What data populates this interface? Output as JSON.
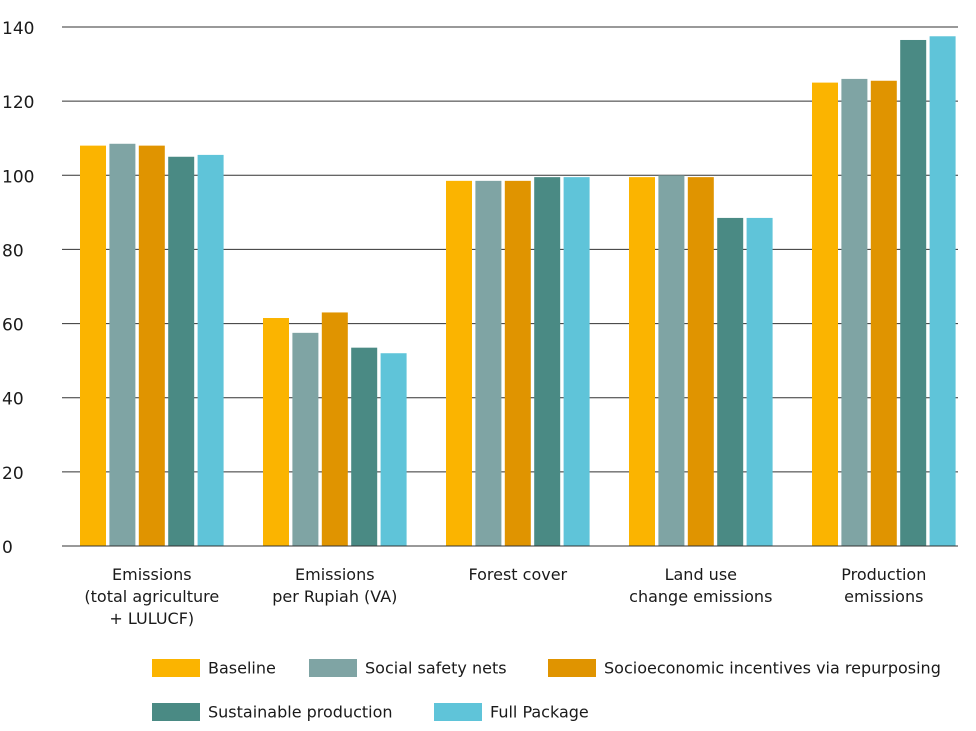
{
  "chart_data": {
    "type": "bar",
    "title": "",
    "xlabel": "",
    "ylabel": "",
    "ylim": [
      0,
      140
    ],
    "yticks": [
      0,
      20,
      40,
      60,
      80,
      100,
      120,
      140
    ],
    "grid": "horizontal",
    "legend_position": "bottom",
    "categories": [
      [
        "Emissions",
        "(total agriculture",
        "+ LULUCF)"
      ],
      [
        "Emissions",
        "per Rupiah (VA)"
      ],
      [
        "Forest cover"
      ],
      [
        "Land use",
        "change emissions"
      ],
      [
        "Production",
        "emissions"
      ]
    ],
    "series": [
      {
        "name": "Baseline",
        "color": "#FBB400",
        "values": [
          108,
          61.5,
          98.5,
          99.5,
          125
        ]
      },
      {
        "name": "Social safety nets",
        "color": "#7FA4A4",
        "values": [
          108.5,
          57.5,
          98.5,
          100,
          126
        ]
      },
      {
        "name": "Socioeconomic incentives via repurposing",
        "color": "#E09400",
        "values": [
          108,
          63,
          98.5,
          99.5,
          125.5
        ]
      },
      {
        "name": "Sustainable production",
        "color": "#4A8A84",
        "values": [
          105,
          53.5,
          99.5,
          88.5,
          136.5
        ]
      },
      {
        "name": "Full Package",
        "color": "#5FC4D9",
        "values": [
          105.5,
          52,
          99.5,
          88.5,
          137.5
        ]
      }
    ]
  }
}
